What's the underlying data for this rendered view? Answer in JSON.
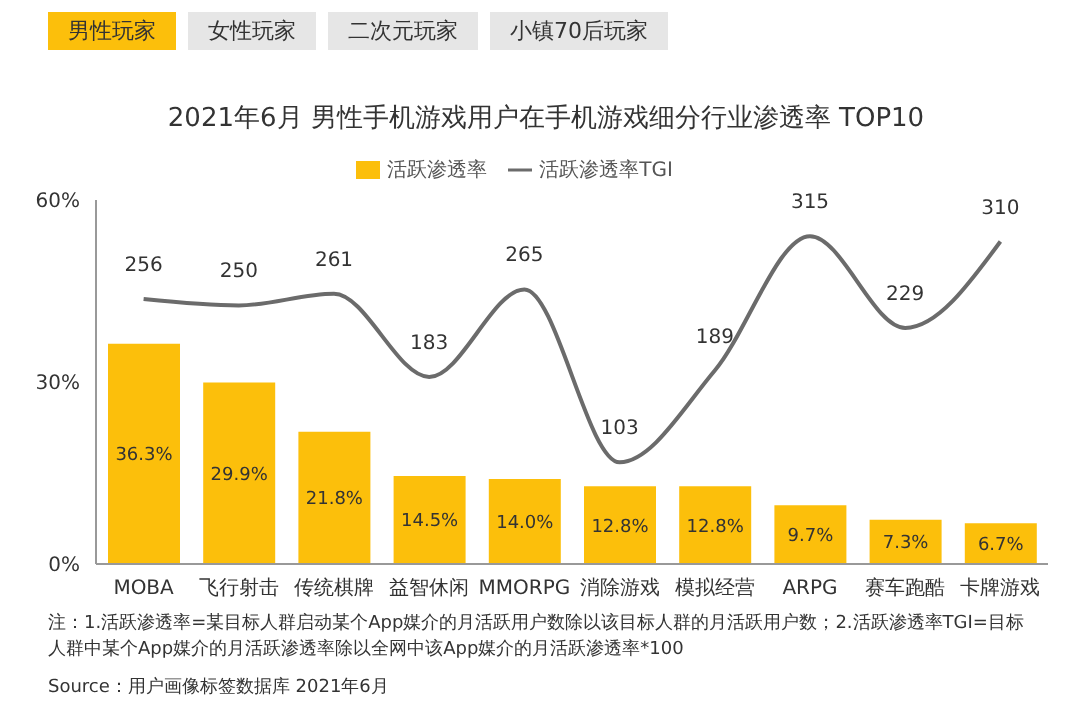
{
  "chart_data": {
    "type": "bar",
    "title": "2021年6月 男性手机游戏用户在手机游戏细分行业渗透率 TOP10",
    "categories": [
      "MOBA",
      "飞行射击",
      "传统棋牌",
      "益智休闲",
      "MMORPG",
      "消除游戏",
      "模拟经营",
      "ARPG",
      "赛车跑酷",
      "卡牌游戏"
    ],
    "series": [
      {
        "name": "活跃渗透率",
        "color": "#fcbf0b",
        "values": [
          36.3,
          29.9,
          21.8,
          14.5,
          14.0,
          12.8,
          12.8,
          9.7,
          7.3,
          6.7
        ],
        "value_labels": [
          "36.3%",
          "29.9%",
          "21.8%",
          "14.5%",
          "14.0%",
          "12.8%",
          "12.8%",
          "9.7%",
          "7.3%",
          "6.7%"
        ]
      },
      {
        "name": "活跃渗透率TGI",
        "type": "line",
        "axis": "y2",
        "color": "#6b6b6b",
        "values": [
          256,
          250,
          261,
          183,
          265,
          103,
          189,
          315,
          229,
          310
        ],
        "value_labels": [
          "256",
          "250",
          "261",
          "183",
          "265",
          "103",
          "189",
          "315",
          "229",
          "310"
        ]
      }
    ],
    "ylim": [
      0,
      60
    ],
    "yticks": [
      {
        "value": 0,
        "label": "0%"
      },
      {
        "value": 30,
        "label": "30%"
      },
      {
        "value": 60,
        "label": "60%"
      }
    ],
    "legend": "top",
    "annotations": [
      "男性玩家",
      "女性玩家",
      "二次元玩家",
      "小镇70后玩家",
      "注：1.活跃渗透率=某目标人群启动某个App媒介的月活跃用户数除以该目标人群的月活跃用户数；2.活跃渗透率TGI=目标人群中某个App媒介的月活跃渗透率除以全网中该App媒介的月活跃渗透率*100",
      "Source：用户画像标签数据库 2021年6月"
    ]
  }
}
